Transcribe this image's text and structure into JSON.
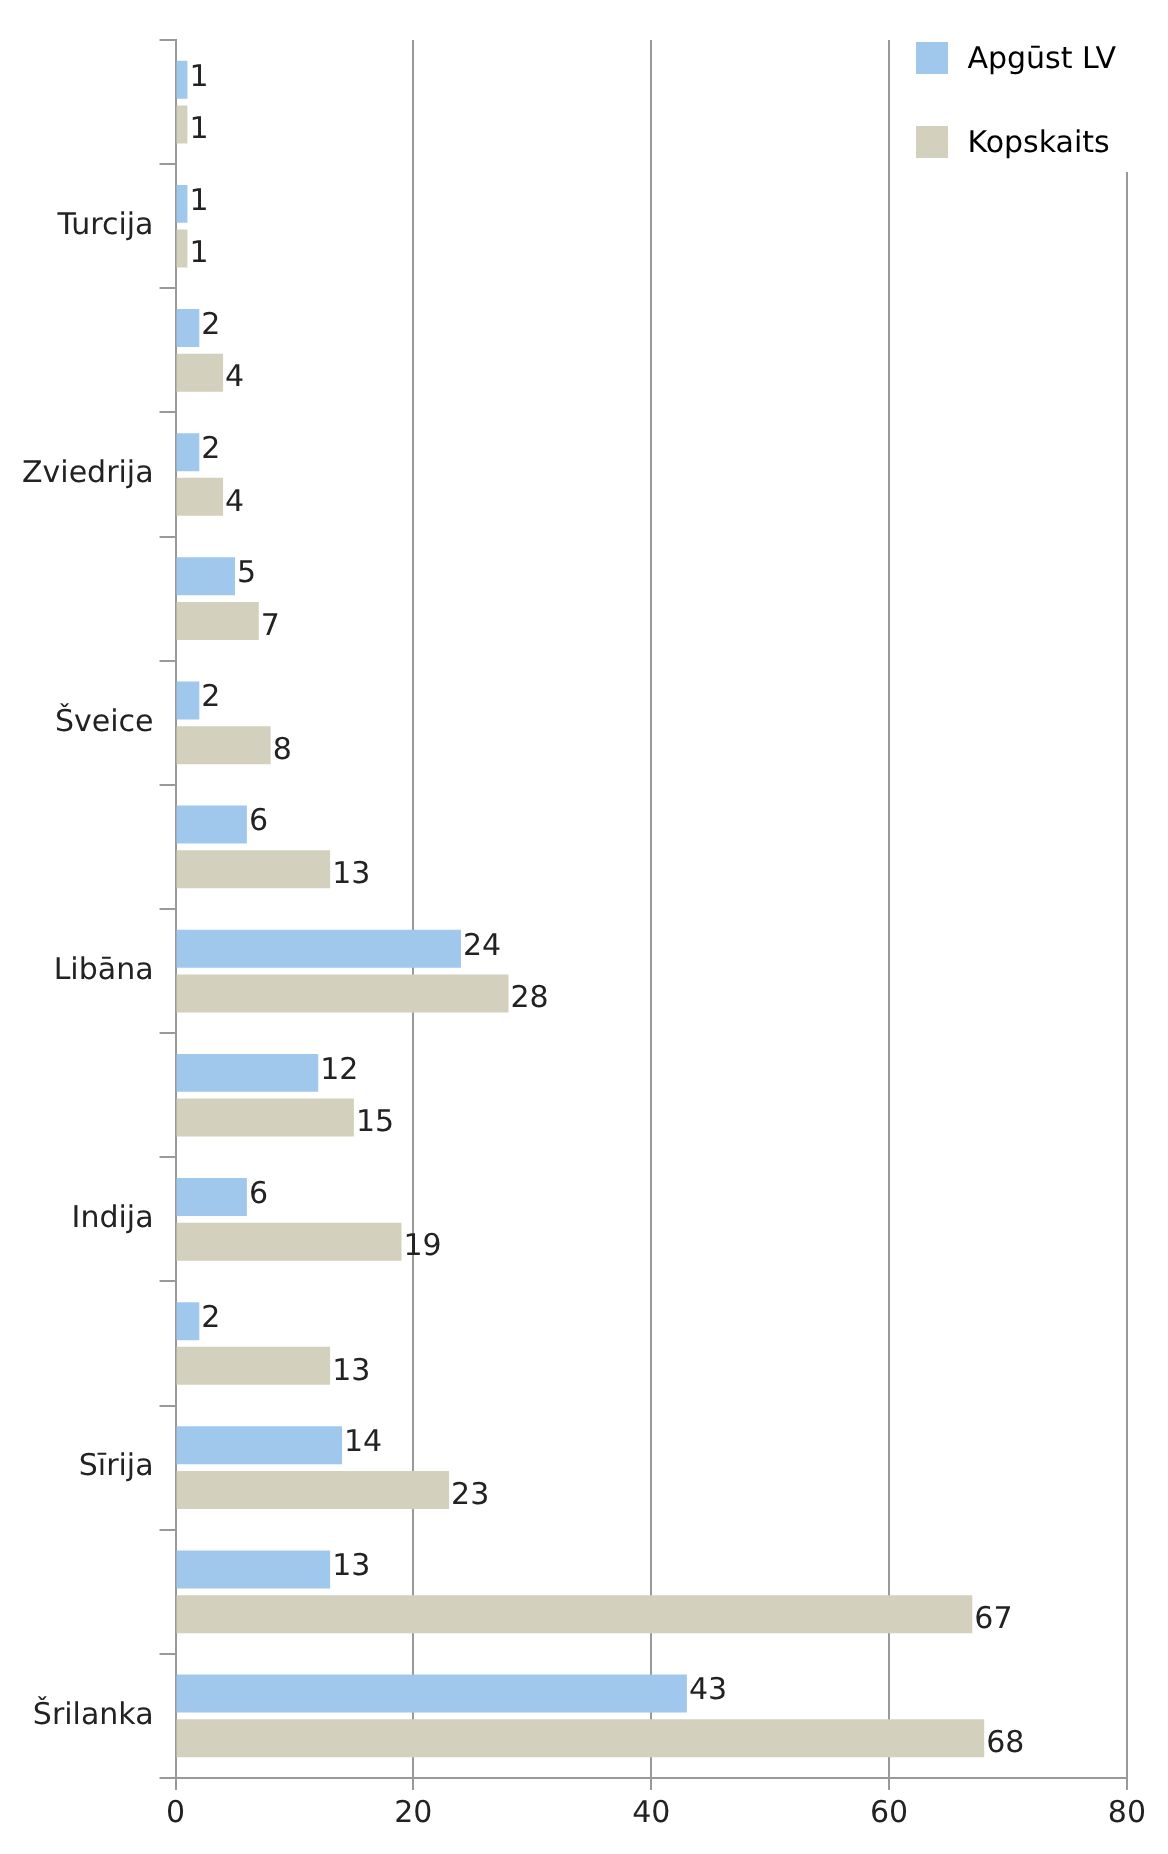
{
  "chart_data": {
    "type": "bar",
    "orientation": "horizontal",
    "categories": [
      null,
      "Turcija",
      null,
      "Zviedrija",
      null,
      "Šveice",
      null,
      "Libāna",
      null,
      "Indija",
      null,
      "Sīrija",
      null,
      "Šrilanka"
    ],
    "series": [
      {
        "name": "Apgūst LV",
        "color": "#9fc8ec",
        "values": [
          1,
          1,
          2,
          2,
          5,
          2,
          6,
          24,
          12,
          6,
          2,
          14,
          13,
          43
        ]
      },
      {
        "name": "Kopskaits",
        "color": "#d3d1bd",
        "values": [
          1,
          1,
          4,
          4,
          7,
          8,
          13,
          28,
          15,
          19,
          13,
          23,
          67,
          68
        ]
      }
    ],
    "xlim": [
      0,
      80
    ],
    "xticks": [
      0,
      20,
      40,
      60,
      80
    ],
    "grid": "x",
    "legend": "top right",
    "data_labels": true
  }
}
